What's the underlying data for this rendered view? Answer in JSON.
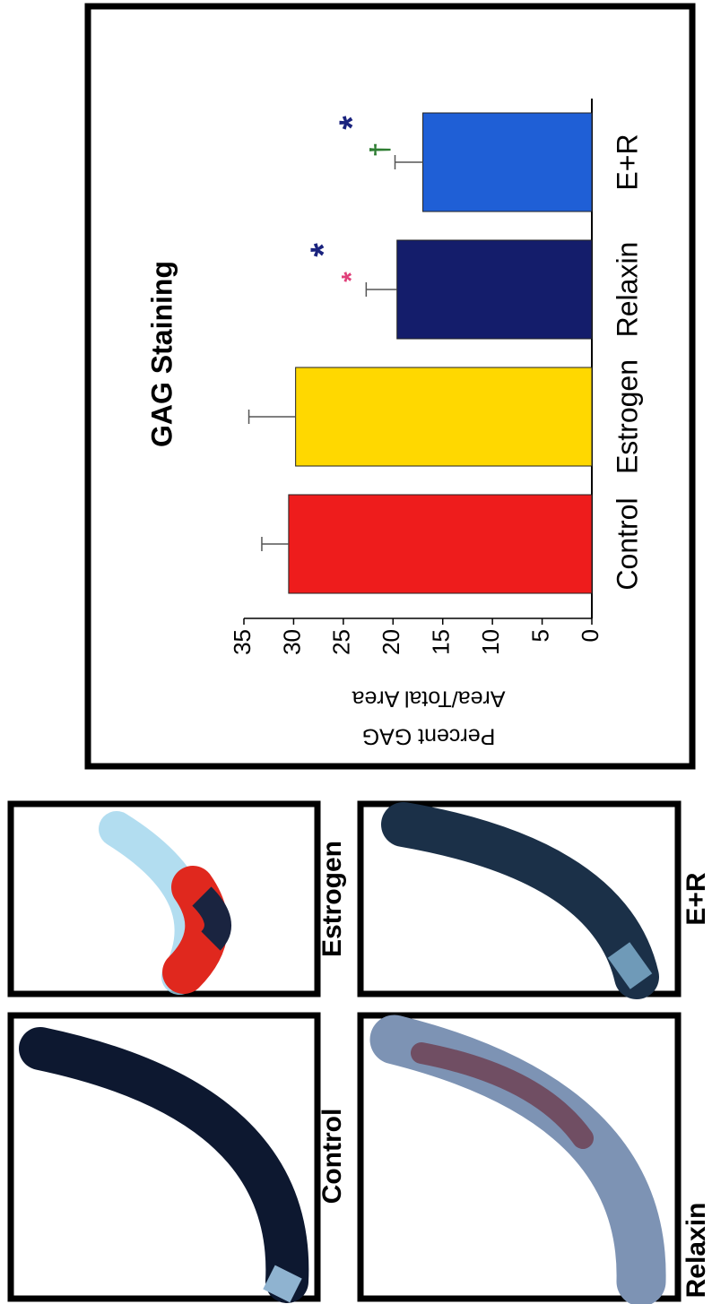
{
  "figure": {
    "panels": [
      {
        "label": "Control"
      },
      {
        "label": "Estrogen"
      },
      {
        "label": "Relaxin"
      },
      {
        "label": "E+R"
      }
    ]
  },
  "chart_data": {
    "type": "bar",
    "title": "GAG Staining",
    "y_label": [
      "Percent GAG",
      "Area/Total Area"
    ],
    "categories": [
      "Control",
      "Estrogen",
      "Relaxin",
      "E+R"
    ],
    "values": [
      30.5,
      29.8,
      19.6,
      17.0
    ],
    "errors": [
      2.7,
      4.7,
      3.1,
      2.8
    ],
    "colors": [
      "#ee1c1c",
      "#ffd800",
      "#141d6b",
      "#1f5fd6"
    ],
    "error_color": "#555555",
    "annotations": [
      null,
      null,
      [
        {
          "text": "*",
          "color": "#e0407a"
        },
        {
          "text": "*",
          "color": "#1a237e"
        }
      ],
      [
        {
          "text": "†",
          "color": "#2e7d32"
        },
        {
          "text": "*",
          "color": "#1a237e"
        }
      ]
    ],
    "ylim": [
      0,
      35
    ],
    "yticks": [
      0,
      5,
      10,
      15,
      20,
      25,
      30,
      35
    ]
  }
}
